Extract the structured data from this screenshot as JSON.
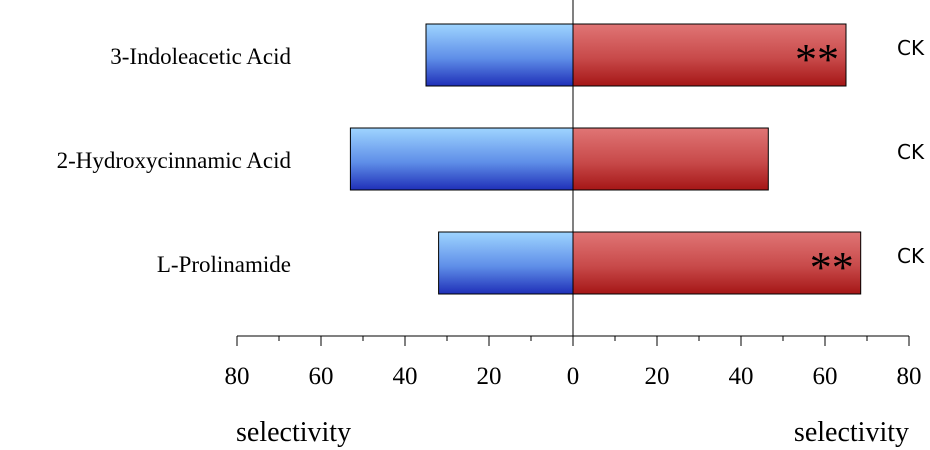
{
  "chart_data": {
    "type": "bar",
    "orientation": "horizontal-diverging",
    "categories": [
      "3-Indoleacetic Acid",
      "2-Hydroxycinnamic Acid",
      "L-Prolinamide"
    ],
    "series": [
      {
        "side": "left",
        "values": [
          35,
          53,
          32
        ],
        "color_top": "#9ed4ff",
        "color_bottom": "#1f2fb8"
      },
      {
        "side": "right",
        "values": [
          65,
          46.5,
          68.5
        ],
        "color_top": "#e07575",
        "color_bottom": "#a51616"
      }
    ],
    "annotations": [
      "**",
      "",
      "**"
    ],
    "side_labels": [
      "CK",
      "CK",
      "CK"
    ],
    "xlim": [
      0,
      80
    ],
    "left_ticks": [
      "80",
      "60",
      "40",
      "20",
      "0"
    ],
    "right_ticks": [
      "20",
      "40",
      "60",
      "80"
    ],
    "xlabel_left": "selectivity",
    "xlabel_right": "selectivity",
    "grid": false
  }
}
